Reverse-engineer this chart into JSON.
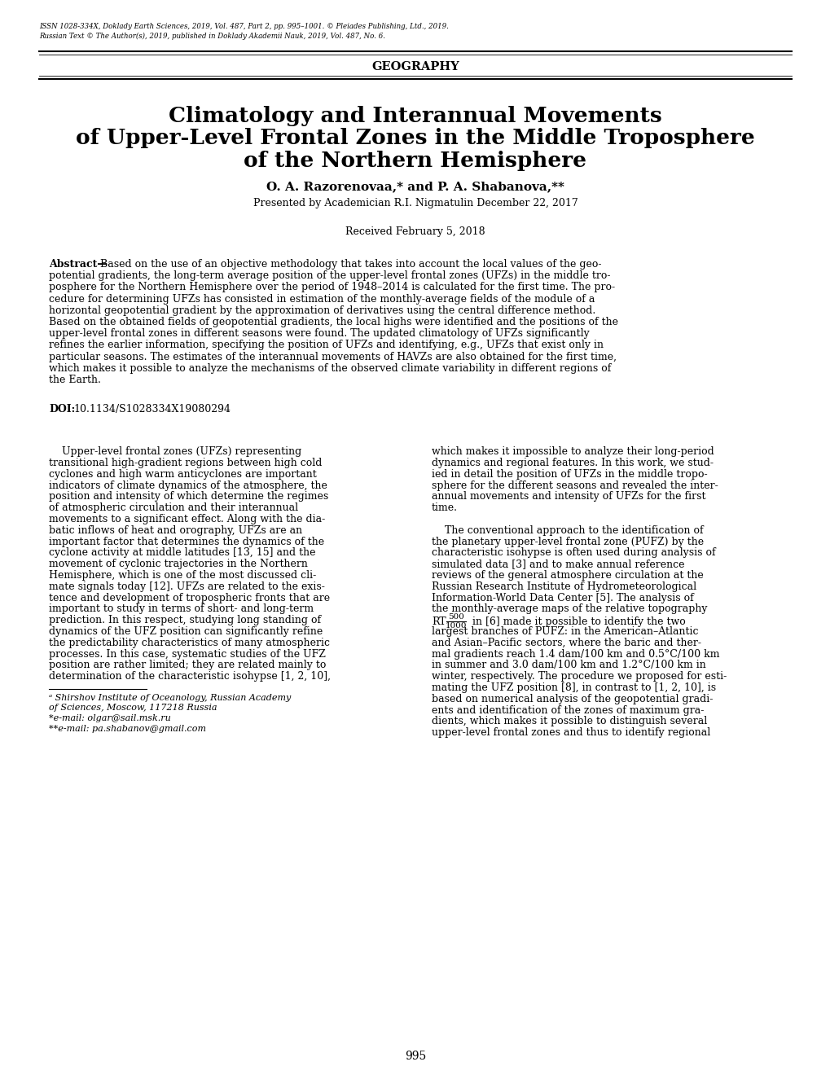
{
  "issn_line1": "ISSN 1028-334X, Doklady Earth Sciences, 2019, Vol. 487, Part 2, pp. 995–1001. © Pleiades Publishing, Ltd., 2019.",
  "issn_line2": "Russian Text © The Author(s), 2019, published in Doklady Akademii Nauk, 2019, Vol. 487, No. 6.",
  "section_header": "GEOGRAPHY",
  "title_line1": "Climatology and Interannual Movements",
  "title_line2": "of Upper-Level Frontal Zones in the Middle Troposphere",
  "title_line3": "of the Northern Hemisphere",
  "authors": "O. A. Razorenovaa,* and P. A. Shabanova,**",
  "presented_by": "Presented by Academician R.I. Nigmatulin December 22, 2017",
  "received": "Received February 5, 2018",
  "abstract_bold": "Abstract—",
  "abstract_text": "Based on the use of an objective methodology that takes into account the local values of the geo-potential gradients, the long-term average position of the upper-level frontal zones (UFZs) in the middle tro-posphere for the Northern Hemisphere over the period of 1948–2014 is calculated for the first time. The pro-cedure for determining UFZs has consisted in estimation of the monthly-average fields of the module of a horizontal geopotential gradient by the approximation of derivatives using the central difference method. Based on the obtained fields of geopotential gradients, the local highs were identified and the positions of the upper-level frontal zones in different seasons were found. The updated climatology of UFZs significantly refines the earlier information, specifying the position of UFZs and identifying, e.g., UFZs that exist only in particular seasons. The estimates of the interannual movements of HAVZs are also obtained for the first time, which makes it possible to analyze the mechanisms of the observed climate variability in different regions of the Earth.",
  "doi_bold": "DOI:",
  "doi_text": "10.1134/S1028334X19080294",
  "body_left_lines": [
    "    Upper-level frontal zones (UFZs) representing",
    "transitional high-gradient regions between high cold",
    "cyclones and high warm anticyclones are important",
    "indicators of climate dynamics of the atmosphere, the",
    "position and intensity of which determine the regimes",
    "of atmospheric circulation and their interannual",
    "movements to a significant effect. Along with the dia-",
    "batic inflows of heat and orography, UFZs are an",
    "important factor that determines the dynamics of the",
    "cyclone activity at middle latitudes [13, 15] and the",
    "movement of cyclonic trajectories in the Northern",
    "Hemisphere, which is one of the most discussed cli-",
    "mate signals today [12]. UFZs are related to the exis-",
    "tence and development of tropospheric fronts that are",
    "important to study in terms of short- and long-term",
    "prediction. In this respect, studying long standing of",
    "dynamics of the UFZ position can significantly refine",
    "the predictability characteristics of many atmospheric",
    "processes. In this case, systematic studies of the UFZ",
    "position are rather limited; they are related mainly to",
    "determination of the characteristic isohypse [1, 2, 10],"
  ],
  "body_right_lines": [
    "which makes it impossible to analyze their long-period",
    "dynamics and regional features. In this work, we stud-",
    "ied in detail the position of UFZs in the middle tropo-",
    "sphere for the different seasons and revealed the inter-",
    "annual movements and intensity of UFZs for the first",
    "time.",
    "",
    "    The conventional approach to the identification of",
    "the planetary upper-level frontal zone (PUFZ) by the",
    "characteristic isohypse is often used during analysis of",
    "simulated data [3] and to make annual reference",
    "reviews of the general atmosphere circulation at the",
    "Russian Research Institute of Hydrometeorological",
    "Information-World Data Center [5]. The analysis of",
    "the monthly-average maps of the relative topography"
  ],
  "rt_prefix": "RT",
  "rt_num": "500",
  "rt_den": "1000",
  "rt_suffix_line1": " in [6] made it possible to identify the two",
  "rt_suffix_lines": [
    "largest branches of PUFZ: in the American–Atlantic",
    "and Asian–Pacific sectors, where the baric and ther-",
    "mal gradients reach 1.4 dam/100 km and 0.5°C/100 km",
    "in summer and 3.0 dam/100 km and 1.2°C/100 km in",
    "winter, respectively. The procedure we proposed for esti-",
    "mating the UFZ position [8], in contrast to [1, 2, 10], is",
    "based on numerical analysis of the geopotential gradi-",
    "ents and identification of the zones of maximum gra-",
    "dients, which makes it possible to distinguish several",
    "upper-level frontal zones and thus to identify regional"
  ],
  "footnote_a": "ᵃ Shirshov Institute of Oceanology, Russian Academy",
  "footnote_b": "of Sciences, Moscow, 117218 Russia",
  "footnote_c": "*e-mail: olgar@sail.msk.ru",
  "footnote_d": "**e-mail: pa.shabanov@gmail.com",
  "page_number": "995",
  "background_color": "#ffffff",
  "text_color": "#000000"
}
